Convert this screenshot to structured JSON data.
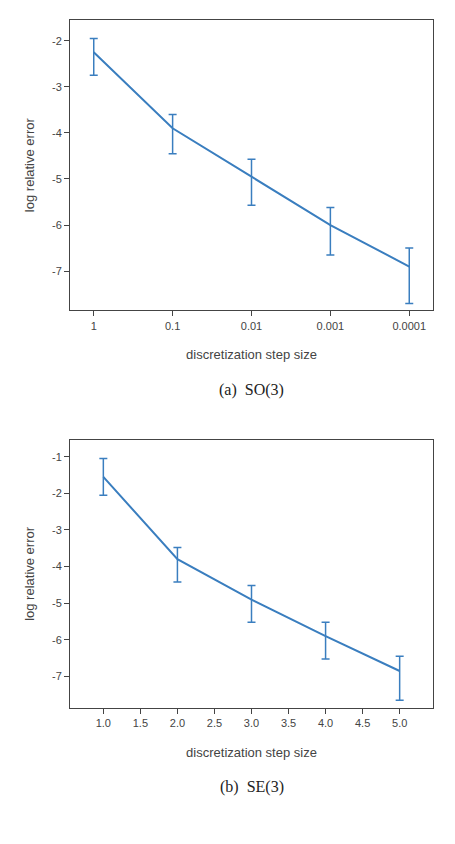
{
  "chart_data": [
    {
      "type": "line",
      "caption": "(a)  SO(3)",
      "xlabel": "discretization step size",
      "ylabel": "log relative error",
      "x": [
        1,
        0.1,
        0.01,
        0.001,
        0.0001
      ],
      "values": [
        -2.25,
        -3.9,
        -4.95,
        -6.0,
        -6.9
      ],
      "error_upper": [
        0.3,
        0.3,
        0.38,
        0.38,
        0.4
      ],
      "error_lower": [
        0.5,
        0.55,
        0.62,
        0.65,
        0.8
      ],
      "color": "#3a7ebf",
      "marker": "none",
      "log": "x",
      "grid": false,
      "xlim": [
        2.0,
        5e-05
      ],
      "xticks": [
        1,
        0.1,
        0.01,
        0.001,
        0.0001
      ],
      "ylim": [
        -7.85,
        -1.55
      ],
      "yticks": [
        -7,
        -6,
        -5,
        -4,
        -3,
        -2
      ]
    },
    {
      "type": "line",
      "caption": "(b)  SE(3)",
      "xlabel": "discretization step size",
      "ylabel": "log relative error",
      "x": [
        1.0,
        2.0,
        3.0,
        4.0,
        5.0
      ],
      "values": [
        -1.55,
        -3.8,
        -4.9,
        -5.9,
        -6.85
      ],
      "error_upper": [
        0.5,
        0.32,
        0.38,
        0.38,
        0.4
      ],
      "error_lower": [
        0.5,
        0.62,
        0.62,
        0.62,
        0.8
      ],
      "color": "#3a7ebf",
      "marker": "none",
      "grid": false,
      "xlim": [
        0.55,
        5.45
      ],
      "xticks": [
        {
          "value": 1.0,
          "label": "1.0"
        },
        1.5,
        {
          "value": 2.0,
          "label": "2.0"
        },
        2.5,
        {
          "value": 3.0,
          "label": "3.0"
        },
        3.5,
        {
          "value": 4.0,
          "label": "4.0"
        },
        4.5,
        {
          "value": 5.0,
          "label": "5.0"
        }
      ],
      "ylim": [
        -7.85,
        -0.55
      ],
      "yticks": [
        -7,
        -6,
        -5,
        -4,
        -3,
        -2,
        -1
      ]
    }
  ]
}
